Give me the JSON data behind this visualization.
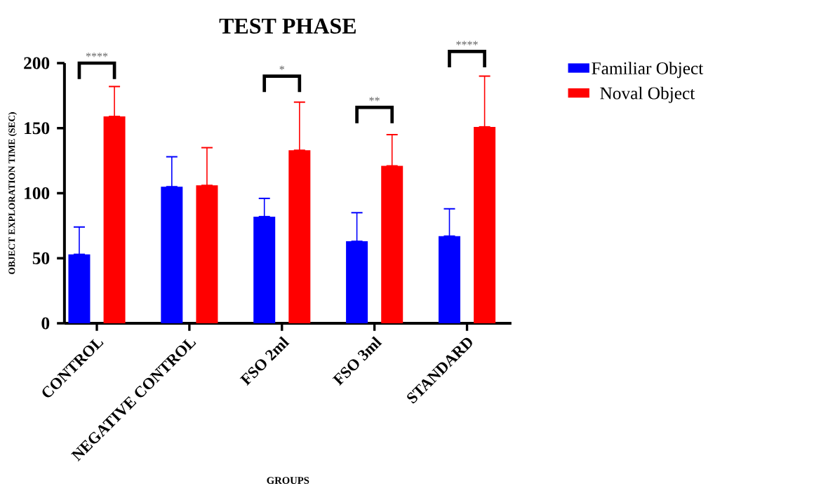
{
  "chart_data": {
    "type": "bar",
    "title": "TEST PHASE",
    "xlabel": "GROUPS",
    "ylabel": "OBJECT EXPLORATION TIME (SEC)",
    "categories": [
      "CONTROL",
      "NEGATIVE CONTROL",
      "FSO 2ml",
      "FSO 3ml",
      "STANDARD"
    ],
    "series": [
      {
        "name": "Familiar Object",
        "color": "#0000ff",
        "values": [
          53,
          105,
          82,
          63,
          67
        ],
        "errors": [
          [
            53,
            74
          ],
          [
            105,
            128
          ],
          [
            82,
            96
          ],
          [
            63,
            85
          ],
          [
            67,
            88
          ]
        ]
      },
      {
        "name": "Noval Object",
        "color": "#ff0000",
        "values": [
          159,
          106,
          133,
          121,
          151
        ],
        "errors": [
          [
            159,
            182
          ],
          [
            106,
            135
          ],
          [
            133,
            170
          ],
          [
            121,
            145
          ],
          [
            151,
            190
          ]
        ]
      }
    ],
    "ylim": [
      0,
      200
    ],
    "yticks": [
      0,
      50,
      100,
      150,
      200
    ],
    "grid": false,
    "legend": "right",
    "annotations": [
      "****",
      "*",
      "**",
      "****"
    ]
  }
}
